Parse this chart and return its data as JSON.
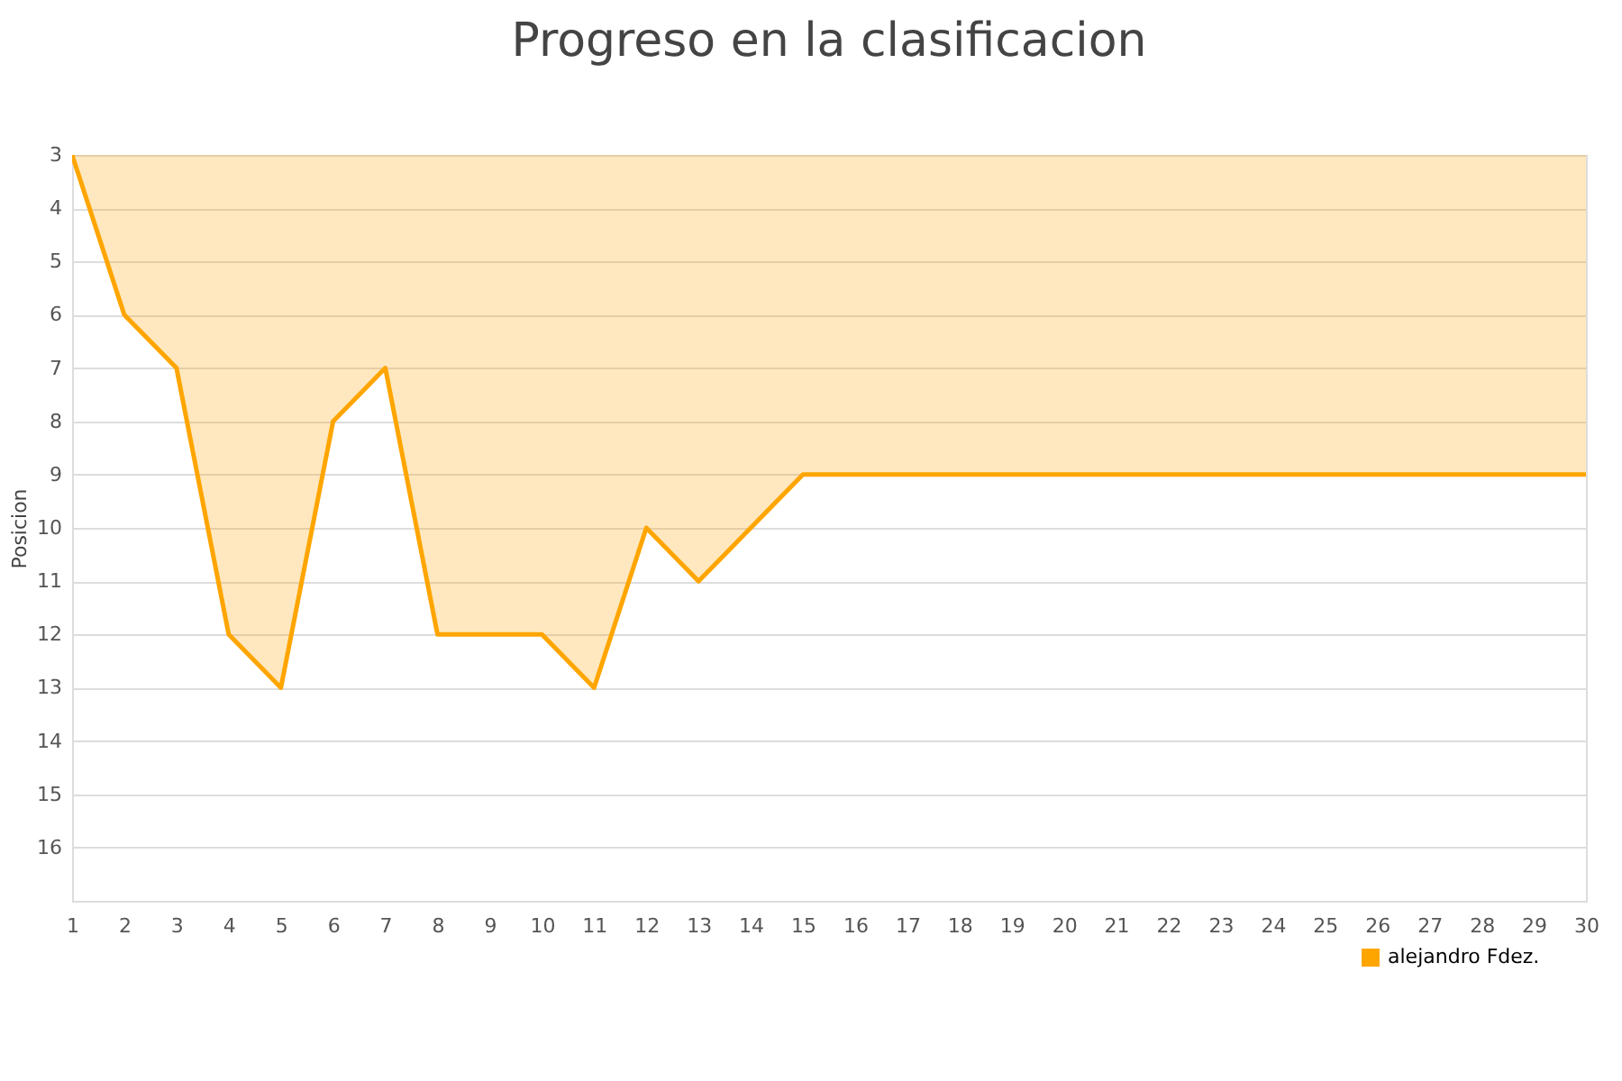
{
  "chart_data": {
    "type": "area",
    "title": "Progreso en la clasificacion",
    "ylabel": "Posicion",
    "x": [
      1,
      2,
      3,
      4,
      5,
      6,
      7,
      8,
      9,
      10,
      11,
      12,
      13,
      14,
      15,
      16,
      17,
      18,
      19,
      20,
      21,
      22,
      23,
      24,
      25,
      26,
      27,
      28,
      29,
      30
    ],
    "series": [
      {
        "name": "alejandro Fdez.",
        "color": "#ffa500",
        "values": [
          3,
          6,
          7,
          12,
          13,
          8,
          7,
          12,
          12,
          12,
          13,
          10,
          11,
          10,
          9,
          9,
          9,
          9,
          9,
          9,
          9,
          9,
          9,
          9,
          9,
          9,
          9,
          9,
          9,
          9
        ]
      }
    ],
    "xlim": [
      1,
      30
    ],
    "xticks": [
      1,
      2,
      3,
      4,
      5,
      6,
      7,
      8,
      9,
      10,
      11,
      12,
      13,
      14,
      15,
      16,
      17,
      18,
      19,
      20,
      21,
      22,
      23,
      24,
      25,
      26,
      27,
      28,
      29,
      30
    ],
    "ylim": [
      17,
      3
    ],
    "yticks": [
      3,
      4,
      5,
      6,
      7,
      8,
      9,
      10,
      11,
      12,
      13,
      14,
      15,
      16
    ],
    "grid": "y",
    "legend": "bottom right"
  }
}
